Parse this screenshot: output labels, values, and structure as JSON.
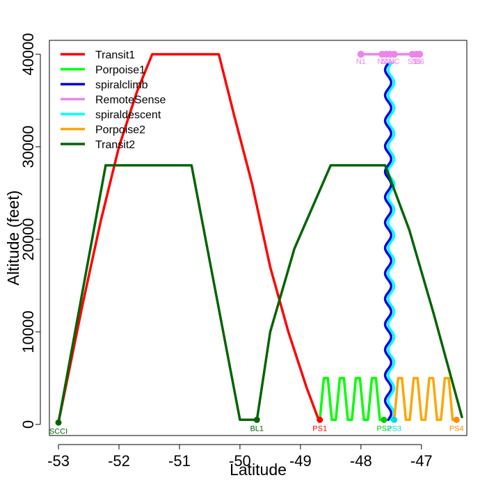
{
  "chart_data": {
    "type": "line",
    "title": "",
    "xlabel": "Latitude",
    "ylabel": "Altitude (feet)",
    "xlim": [
      -53.15,
      -46.25
    ],
    "ylim": [
      -1200,
      41500
    ],
    "x_ticks": [
      -53,
      -52,
      -51,
      -50,
      -49,
      -48,
      -47
    ],
    "y_ticks": [
      0,
      10000,
      20000,
      30000,
      40000
    ],
    "legend": {
      "position": "top-left",
      "entries": [
        "Transit1",
        "Porpoise1",
        "spiralclimb",
        "RemoteSense",
        "spiraldescent",
        "Porpoise2",
        "Transit2"
      ]
    },
    "series": [
      {
        "name": "Transit1",
        "color": "#ff0000",
        "kind": "polyline",
        "points": [
          [
            -53.0,
            200
          ],
          [
            -52.85,
            5000
          ],
          [
            -52.6,
            13000
          ],
          [
            -52.3,
            22000
          ],
          [
            -52.0,
            30000
          ],
          [
            -51.7,
            36000
          ],
          [
            -51.45,
            40000
          ],
          [
            -50.35,
            40000
          ],
          [
            -50.1,
            33500
          ],
          [
            -49.8,
            26000
          ],
          [
            -49.5,
            17000
          ],
          [
            -49.2,
            10000
          ],
          [
            -48.9,
            4000
          ],
          [
            -48.7,
            500
          ]
        ]
      },
      {
        "name": "Porpoise1",
        "color": "#00ff00",
        "kind": "porpoise",
        "x_start": -48.68,
        "x_end": -47.62,
        "low": 500,
        "high": 5000,
        "cycles": 4
      },
      {
        "name": "spiralclimb",
        "color": "#0000dd",
        "kind": "spiral",
        "center": -47.55,
        "amplitude": 0.05,
        "y_start": 500,
        "y_end": 39000,
        "cycles": 14,
        "phase": 0
      },
      {
        "name": "RemoteSense",
        "color": "#ee82ee",
        "kind": "remote",
        "altitude": 40000,
        "x_start": -48.0,
        "x_end": -47.05,
        "markers": [
          -48.0,
          -47.65,
          -47.58,
          -47.52,
          -47.45,
          -47.15,
          -47.08,
          -47.03
        ],
        "marker_labels": [
          "N1",
          "N2",
          "N3",
          "N4",
          "NC",
          "S1",
          "S5",
          "S6"
        ]
      },
      {
        "name": "spiraldescent",
        "color": "#00ffff",
        "kind": "spiral",
        "center": -47.5,
        "amplitude": 0.05,
        "y_start": 39000,
        "y_end": 500,
        "cycles": 14,
        "phase": 3.1416
      },
      {
        "name": "Porpoise2",
        "color": "#ffa500",
        "kind": "porpoise",
        "x_start": -47.45,
        "x_end": -46.42,
        "low": 500,
        "high": 5000,
        "cycles": 4
      },
      {
        "name": "Transit2",
        "color": "#006400",
        "kind": "polyline",
        "points": [
          [
            -53.0,
            200
          ],
          [
            -52.22,
            28000
          ],
          [
            -50.8,
            28000
          ],
          [
            -50.0,
            500
          ],
          [
            -49.72,
            500
          ],
          [
            -49.5,
            10000
          ],
          [
            -49.1,
            19000
          ],
          [
            -48.5,
            28000
          ],
          [
            -47.6,
            28000
          ],
          [
            -47.2,
            21000
          ],
          [
            -46.8,
            12000
          ],
          [
            -46.33,
            800
          ]
        ]
      }
    ],
    "waypoints": [
      {
        "label": "SCCI",
        "x": -53.0,
        "y": 200,
        "color": "#006400"
      },
      {
        "label": "BL1",
        "x": -49.72,
        "y": 500,
        "color": "#006400"
      },
      {
        "label": "PS1",
        "x": -48.68,
        "y": 500,
        "color": "#ff0000"
      },
      {
        "label": "PS2",
        "x": -47.62,
        "y": 500,
        "color": "#00cc00"
      },
      {
        "label": "PS3",
        "x": -47.45,
        "y": 500,
        "color": "#00dddd"
      },
      {
        "label": "PS4",
        "x": -46.42,
        "y": 500,
        "color": "#ff8c00"
      }
    ]
  }
}
